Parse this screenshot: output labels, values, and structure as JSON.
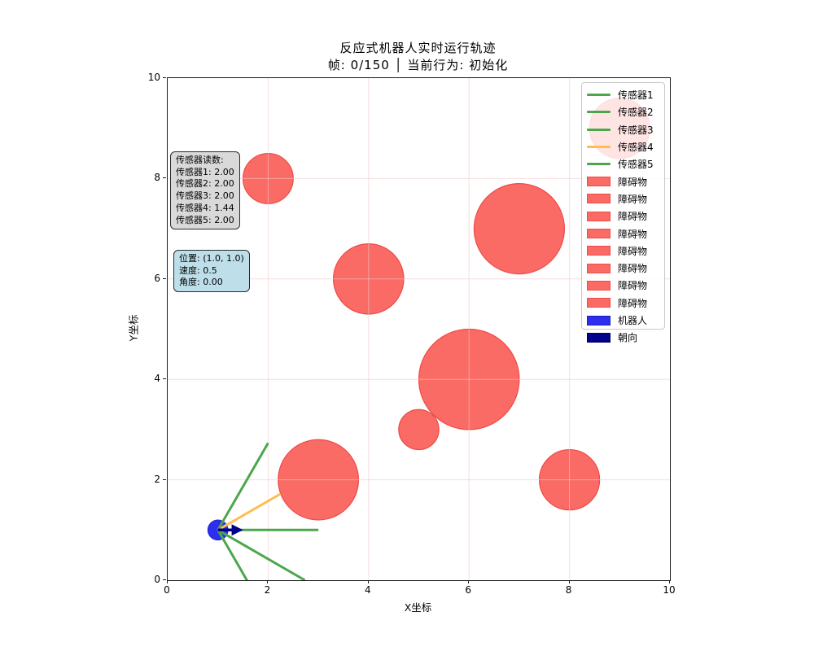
{
  "title": "反应式机器人实时运行轨迹",
  "subtitle": "帧: 0/150 │ 当前行为: 初始化",
  "axes": {
    "xlabel": "X坐标",
    "ylabel": "Y坐标",
    "xticks": [
      0,
      2,
      4,
      6,
      8,
      10
    ],
    "yticks": [
      0,
      2,
      4,
      6,
      8,
      10
    ],
    "grid_positions": [
      2,
      4,
      6,
      8
    ]
  },
  "legend": {
    "items": [
      {
        "label": "传感器1",
        "type": "line",
        "color": "#4ca64c",
        "edge": "#4ca64c"
      },
      {
        "label": "传感器2",
        "type": "line",
        "color": "#4ca64c",
        "edge": "#4ca64c"
      },
      {
        "label": "传感器3",
        "type": "line",
        "color": "#4ca64c",
        "edge": "#4ca64c"
      },
      {
        "label": "传感器4",
        "type": "line",
        "color": "#ffbd4f",
        "edge": "#ffbd4f"
      },
      {
        "label": "传感器5",
        "type": "line",
        "color": "#4ca64c",
        "edge": "#4ca64c"
      },
      {
        "label": "障碍物",
        "type": "patch",
        "color": "#fa6b66",
        "edge": "#ef4a46"
      },
      {
        "label": "障碍物",
        "type": "patch",
        "color": "#fa6b66",
        "edge": "#ef4a46"
      },
      {
        "label": "障碍物",
        "type": "patch",
        "color": "#fa6b66",
        "edge": "#ef4a46"
      },
      {
        "label": "障碍物",
        "type": "patch",
        "color": "#fa6b66",
        "edge": "#ef4a46"
      },
      {
        "label": "障碍物",
        "type": "patch",
        "color": "#fa6b66",
        "edge": "#ef4a46"
      },
      {
        "label": "障碍物",
        "type": "patch",
        "color": "#fa6b66",
        "edge": "#ef4a46"
      },
      {
        "label": "障碍物",
        "type": "patch",
        "color": "#fa6b66",
        "edge": "#ef4a46"
      },
      {
        "label": "障碍物",
        "type": "patch",
        "color": "#fa6b66",
        "edge": "#ef4a46"
      },
      {
        "label": "机器人",
        "type": "patch",
        "color": "#2e2ef0",
        "edge": "#1b1bc0"
      },
      {
        "label": "朝向",
        "type": "patch",
        "color": "#00008b",
        "edge": "#000060"
      }
    ]
  },
  "sensor_panel": {
    "title": "传感器读数:",
    "lines": [
      "传感器1: 2.00",
      "传感器2: 2.00",
      "传感器3: 2.00",
      "传感器4: 1.44",
      "传感器5: 2.00"
    ]
  },
  "status_panel": {
    "lines": [
      "位置: (1.0, 1.0)",
      "速度: 0.5",
      "角度: 0.00"
    ]
  },
  "chart_data": {
    "type": "scatter",
    "title": "反应式机器人实时运行轨迹",
    "frame": "0/150",
    "current_behavior": "初始化",
    "xlabel": "X坐标",
    "ylabel": "Y坐标",
    "xlim": [
      0,
      10
    ],
    "ylim": [
      0,
      10
    ],
    "grid": true,
    "legend_position": "upper right",
    "robot": {
      "x": 1.0,
      "y": 1.0,
      "radius": 0.2,
      "heading_deg": 0.0,
      "speed": 0.5,
      "fill": "#2e2ef0",
      "edge": "#2222cc",
      "heading_color": "#00008b",
      "heading_length": 0.5
    },
    "obstacles": [
      {
        "x": 2,
        "y": 8,
        "r": 0.5
      },
      {
        "x": 4,
        "y": 6,
        "r": 0.7
      },
      {
        "x": 7,
        "y": 7,
        "r": 0.9
      },
      {
        "x": 9,
        "y": 9,
        "r": 0.6
      },
      {
        "x": 6,
        "y": 4,
        "r": 1.0
      },
      {
        "x": 5,
        "y": 3,
        "r": 0.4
      },
      {
        "x": 3,
        "y": 2,
        "r": 0.8
      },
      {
        "x": 8,
        "y": 2,
        "r": 0.6
      }
    ],
    "obstacle_style": {
      "fill": "#fa6b66",
      "edge": "#ef4a46"
    },
    "sensors": [
      {
        "name": "传感器1",
        "angle_deg": -60,
        "reading": 2.0,
        "color": "#4ca64c"
      },
      {
        "name": "传感器2",
        "angle_deg": -30,
        "reading": 2.0,
        "color": "#4ca64c"
      },
      {
        "name": "传感器3",
        "angle_deg": 0,
        "reading": 2.0,
        "color": "#4ca64c"
      },
      {
        "name": "传感器4",
        "angle_deg": 30,
        "reading": 1.44,
        "color": "#ffbd4f"
      },
      {
        "name": "传感器5",
        "angle_deg": 60,
        "reading": 2.0,
        "color": "#4ca64c"
      }
    ],
    "grid_color": "#f0c8c8"
  }
}
